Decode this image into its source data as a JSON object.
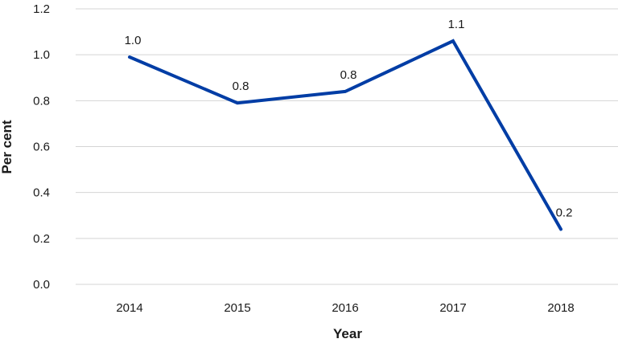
{
  "chart_data": {
    "type": "line",
    "title": "",
    "xlabel": "Year",
    "ylabel": "Per cent",
    "categories": [
      "2014",
      "2015",
      "2016",
      "2017",
      "2018"
    ],
    "series": [
      {
        "values": [
          0.99,
          0.79,
          0.84,
          1.06,
          0.24
        ],
        "data_labels": [
          "1.0",
          "0.8",
          "0.8",
          "1.1",
          "0.2"
        ],
        "color": "#003da5"
      }
    ],
    "ylim": [
      0,
      1.2
    ],
    "yticks": [
      0,
      0.2,
      0.4,
      0.6,
      0.8,
      1.0,
      1.2
    ],
    "ytick_labels": [
      "0.0",
      "0.2",
      "0.4",
      "0.6",
      "0.8",
      "1.0",
      "1.2"
    ],
    "grid": true,
    "legend": "none"
  }
}
